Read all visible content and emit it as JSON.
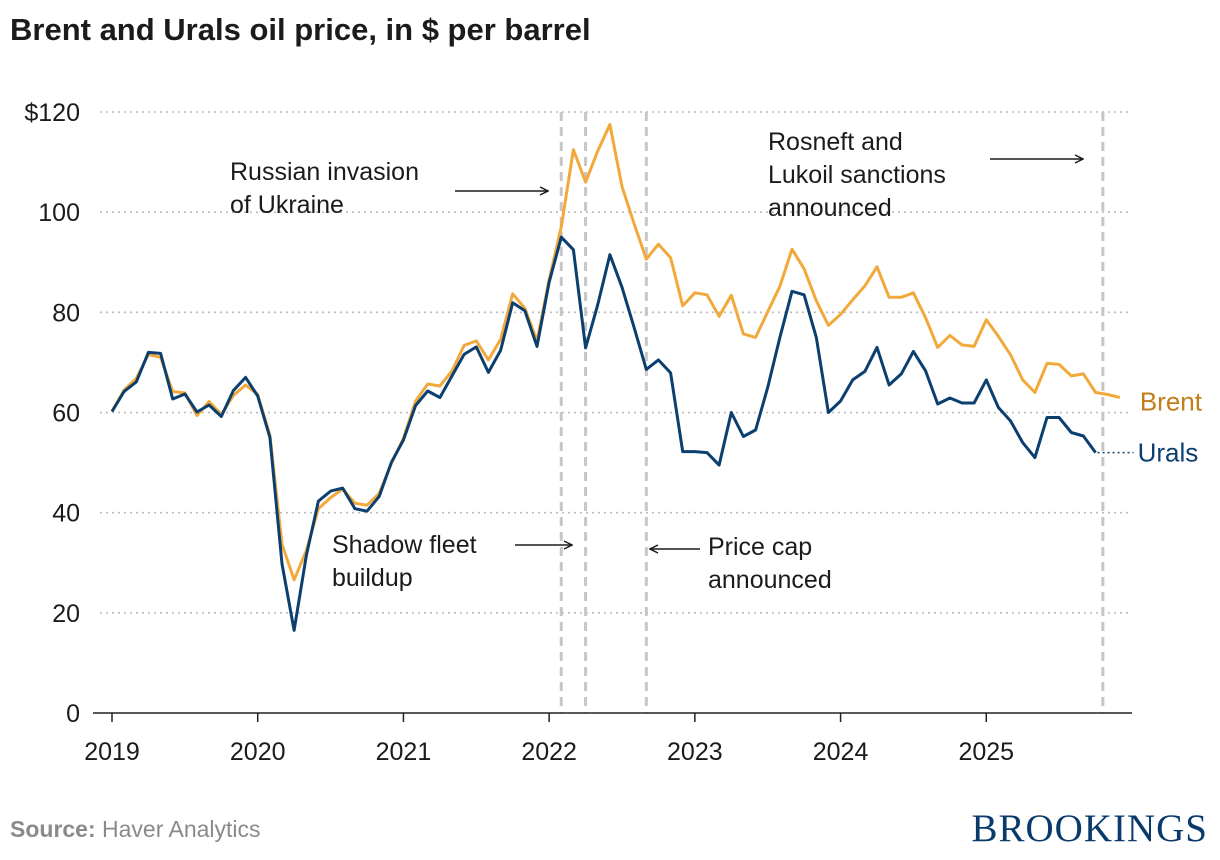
{
  "title": "Brent and Urals oil price, in $ per barrel",
  "source": {
    "label": "Source:",
    "text": "Haver Analytics"
  },
  "brand": "BROOKINGS",
  "colors": {
    "brent": "#F2A93B",
    "urals": "#0B3F6F",
    "brent_label": "#C27C1A",
    "grid": "#BBBBBB",
    "event_line": "#C6C6C6"
  },
  "chart_data": {
    "type": "line",
    "title": "Brent and Urals oil price, in $ per barrel",
    "x_start": 2019,
    "x_step_months": 1,
    "ylim": [
      0,
      120
    ],
    "xlim": [
      2019,
      2026
    ],
    "y_ticks": [
      {
        "value": 0,
        "label": "0"
      },
      {
        "value": 20,
        "label": "20"
      },
      {
        "value": 40,
        "label": "40"
      },
      {
        "value": 60,
        "label": "60"
      },
      {
        "value": 80,
        "label": "80"
      },
      {
        "value": 100,
        "label": "100"
      },
      {
        "value": 120,
        "label": "$120"
      }
    ],
    "x_ticks": [
      {
        "value": 2019,
        "label": "2019"
      },
      {
        "value": 2020,
        "label": "2020"
      },
      {
        "value": 2021,
        "label": "2021"
      },
      {
        "value": 2022,
        "label": "2022"
      },
      {
        "value": 2023,
        "label": "2023"
      },
      {
        "value": 2024,
        "label": "2024"
      },
      {
        "value": 2025,
        "label": "2025"
      }
    ],
    "grid": "horizontal dotted",
    "series": [
      {
        "name": "Brent",
        "color": "#F2A93B",
        "values": [
          60.2,
          64.5,
          66.8,
          71.6,
          71.0,
          64.2,
          63.9,
          59.4,
          62.2,
          59.6,
          63.4,
          65.5,
          63.6,
          55.5,
          33.7,
          26.6,
          32.4,
          40.8,
          43.0,
          44.7,
          41.9,
          41.5,
          43.8,
          49.8,
          54.8,
          62.3,
          65.7,
          65.3,
          68.3,
          73.4,
          74.3,
          70.5,
          74.6,
          83.7,
          80.8,
          74.3,
          86.5,
          97.1,
          112.5,
          106.0,
          112.2,
          117.5,
          105.1,
          97.7,
          90.6,
          93.6,
          90.9,
          81.3,
          83.9,
          83.5,
          79.2,
          83.4,
          75.7,
          75.0,
          80.1,
          85.2,
          92.6,
          88.7,
          82.3,
          77.4,
          79.6,
          82.5,
          85.3,
          89.1,
          83.0,
          83.0,
          83.9,
          78.9,
          73.0,
          75.4,
          73.5,
          73.2,
          78.5,
          75.2,
          71.5,
          66.5,
          64.0,
          69.8,
          69.6,
          67.3,
          67.7,
          64.0,
          63.6,
          63.0
        ]
      },
      {
        "name": "Urals",
        "color": "#0B3F6F",
        "values": [
          60.2,
          64.2,
          66.1,
          72.0,
          71.8,
          62.7,
          63.7,
          60.1,
          61.5,
          59.2,
          64.4,
          67.0,
          63.3,
          55.0,
          29.8,
          16.5,
          31.4,
          42.3,
          44.3,
          44.9,
          40.8,
          40.3,
          43.2,
          50.0,
          54.5,
          61.4,
          64.3,
          63.0,
          67.3,
          71.6,
          73.1,
          68.0,
          72.4,
          81.9,
          80.3,
          73.2,
          86.0,
          95.0,
          92.5,
          72.9,
          81.5,
          91.5,
          85.0,
          77.0,
          68.6,
          70.5,
          67.9,
          52.2,
          52.2,
          52.0,
          49.5,
          60.0,
          55.2,
          56.5,
          65.0,
          75.0,
          84.2,
          83.5,
          75.0,
          60.0,
          62.3,
          66.5,
          68.2,
          73.0,
          65.5,
          67.7,
          72.2,
          68.3,
          61.7,
          62.9,
          61.9,
          61.9,
          66.5,
          61.0,
          58.3,
          54.0,
          51.0,
          59.0,
          59.0,
          56.0,
          55.3,
          52.0
        ]
      }
    ],
    "series_end_labels": [
      "Brent",
      "Urals"
    ],
    "event_lines": [
      {
        "date": "2022-02",
        "x": 2022.083
      },
      {
        "date": "2022-04",
        "x": 2022.25
      },
      {
        "date": "2022-09",
        "x": 2022.667
      },
      {
        "date": "2025-10",
        "x": 2025.8
      }
    ],
    "annotations": [
      {
        "id": "invasion",
        "lines": [
          "Russian invasion",
          "of Ukraine"
        ]
      },
      {
        "id": "shadow",
        "lines": [
          "Shadow fleet",
          "buildup"
        ]
      },
      {
        "id": "pricecap",
        "lines": [
          "Price cap",
          "announced"
        ]
      },
      {
        "id": "rosneft",
        "lines": [
          "Rosneft and",
          "Lukoil sanctions",
          "announced"
        ]
      }
    ]
  }
}
